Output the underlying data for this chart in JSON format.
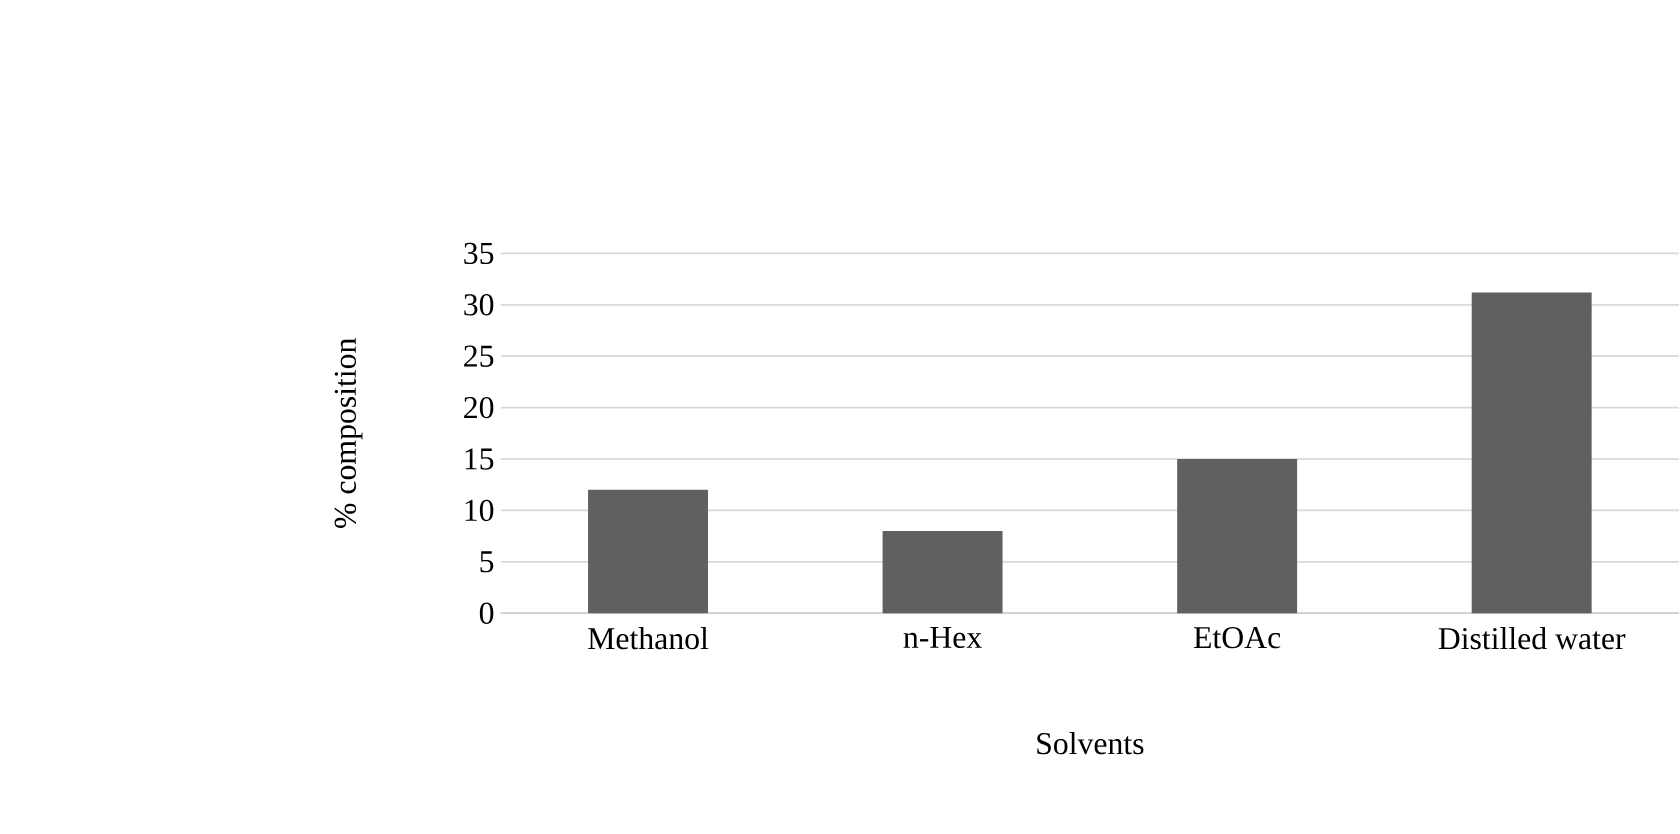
{
  "chart_data": {
    "type": "bar",
    "xlabel": "Solvents",
    "ylabel": "% composition",
    "categories": [
      "Methanol",
      "n-Hex",
      "EtOAc",
      "Distilled water"
    ],
    "values": [
      12,
      8,
      15,
      31.2
    ],
    "color": "#606060",
    "ylim": [
      0,
      35
    ],
    "yticks": [
      0,
      5,
      10,
      15,
      20,
      25,
      30,
      35
    ],
    "grid": "y"
  }
}
